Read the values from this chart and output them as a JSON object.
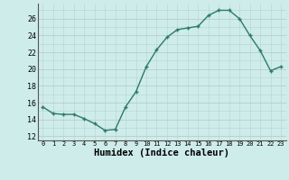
{
  "x": [
    0,
    1,
    2,
    3,
    4,
    5,
    6,
    7,
    8,
    9,
    10,
    11,
    12,
    13,
    14,
    15,
    16,
    17,
    18,
    19,
    20,
    21,
    22,
    23
  ],
  "y": [
    15.5,
    14.7,
    14.6,
    14.6,
    14.1,
    13.5,
    12.7,
    12.8,
    15.5,
    17.3,
    20.3,
    22.3,
    23.8,
    24.7,
    24.9,
    25.1,
    26.4,
    27.0,
    27.0,
    26.0,
    24.0,
    22.2,
    19.8,
    20.3
  ],
  "xlabel": "Humidex (Indice chaleur)",
  "xlim": [
    -0.5,
    23.5
  ],
  "ylim": [
    11.5,
    27.8
  ],
  "yticks": [
    12,
    14,
    16,
    18,
    20,
    22,
    24,
    26
  ],
  "xticks": [
    0,
    1,
    2,
    3,
    4,
    5,
    6,
    7,
    8,
    9,
    10,
    11,
    12,
    13,
    14,
    15,
    16,
    17,
    18,
    19,
    20,
    21,
    22,
    23
  ],
  "line_color": "#2d7a6a",
  "bg_color": "#ceecea",
  "grid_major_color": "#b8d8d6",
  "grid_minor_color": "#c8b0b0"
}
